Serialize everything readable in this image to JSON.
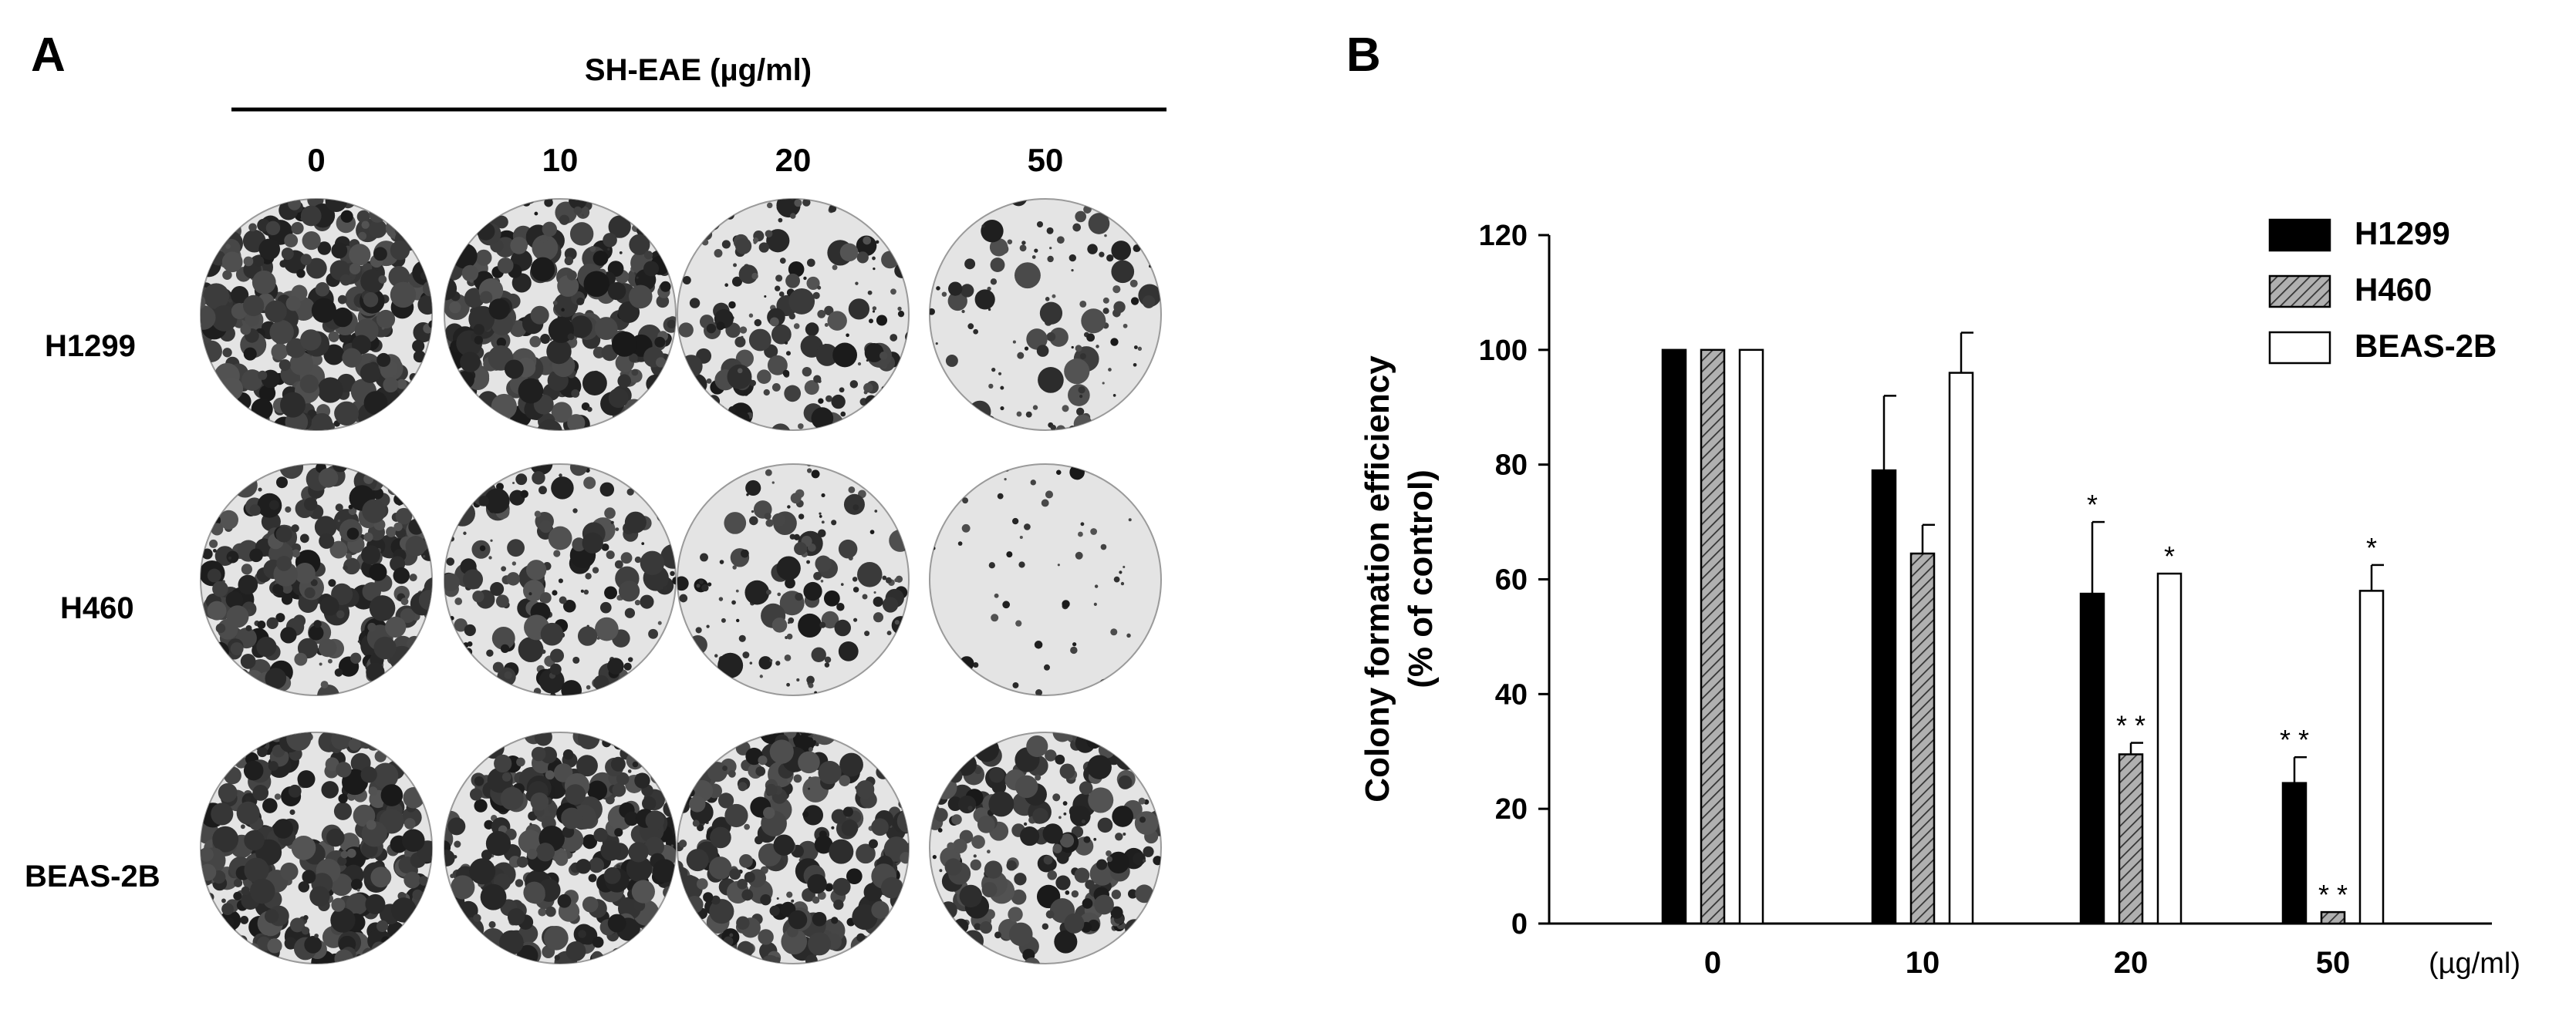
{
  "panel_a": {
    "label": "A",
    "treatment_label": "SH-EAE (µg/ml)",
    "concentrations": [
      "0",
      "10",
      "20",
      "50"
    ],
    "cell_lines": [
      "H1299",
      "H460",
      "BEAS-2B"
    ],
    "colony_density": [
      [
        0.95,
        0.9,
        0.55,
        0.3
      ],
      [
        0.85,
        0.55,
        0.4,
        0.04
      ],
      [
        0.95,
        0.92,
        0.85,
        0.75
      ]
    ]
  },
  "panel_b": {
    "label": "B"
  },
  "chart_data": {
    "type": "bar",
    "title": "",
    "xlabel": "(µg/ml)",
    "ylabel": "Colony formation efficiency\n(% of control)",
    "ylabel_lines": [
      "Colony formation efficiency",
      "(% of control)"
    ],
    "categories": [
      "0",
      "10",
      "20",
      "50"
    ],
    "ylim": [
      0,
      120
    ],
    "yticks": [
      "0",
      "20",
      "40",
      "60",
      "80",
      "100",
      "120"
    ],
    "legend_position": "top-right",
    "grid": false,
    "series": [
      {
        "name": "H1299",
        "fill": "solid-black",
        "values": [
          100,
          79,
          57.5,
          24.5
        ],
        "errors": [
          0,
          13,
          12.5,
          4.5
        ],
        "significance": [
          "",
          "",
          "*",
          "* *"
        ]
      },
      {
        "name": "H460",
        "fill": "hatched-gray",
        "values": [
          100,
          64.5,
          29.5,
          2
        ],
        "errors": [
          0,
          5,
          2,
          0
        ],
        "significance": [
          "",
          "",
          "* *",
          "* *"
        ]
      },
      {
        "name": "BEAS-2B",
        "fill": "white",
        "values": [
          100,
          96,
          61,
          58
        ],
        "errors": [
          0,
          7,
          0,
          4.5
        ],
        "significance": [
          "",
          "",
          "*",
          "*"
        ]
      }
    ]
  }
}
